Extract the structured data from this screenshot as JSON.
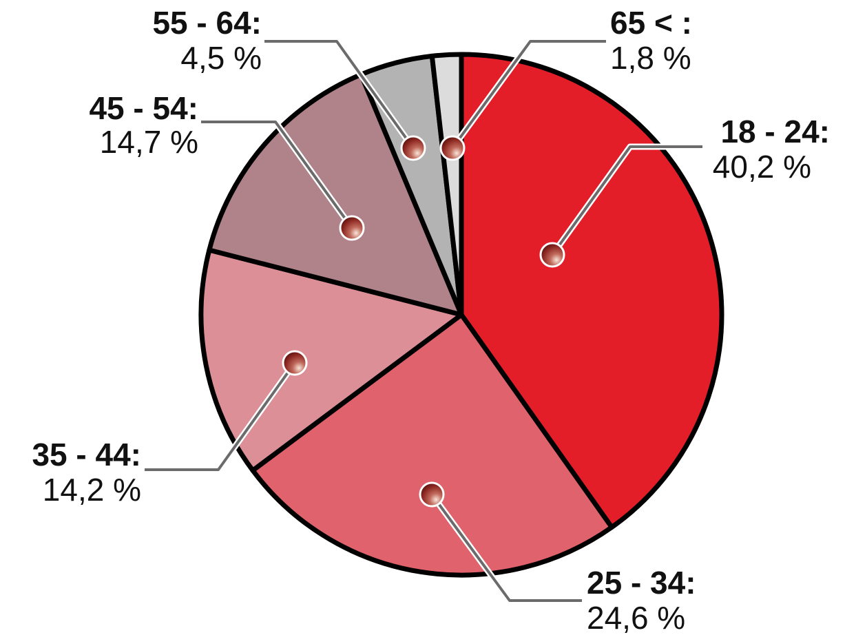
{
  "chart_data": {
    "type": "pie",
    "title": "",
    "categories": [
      "18 - 24:",
      "25 - 34:",
      "35 - 44:",
      "45 - 54:",
      "55 - 64:",
      "65 < :"
    ],
    "values": [
      40.2,
      24.6,
      14.2,
      14.7,
      4.5,
      1.8
    ],
    "value_labels": [
      "40,2 %",
      "24,6 %",
      "14,2 %",
      "14,7 %",
      "4,5 %",
      "1,8 %"
    ],
    "colors": [
      "#e41e29",
      "#e0626c",
      "#dd8f97",
      "#b0828a",
      "#b3b3b3",
      "#dcdcdc"
    ],
    "start_direction": "top",
    "direction": "clockwise",
    "legend": "none"
  }
}
